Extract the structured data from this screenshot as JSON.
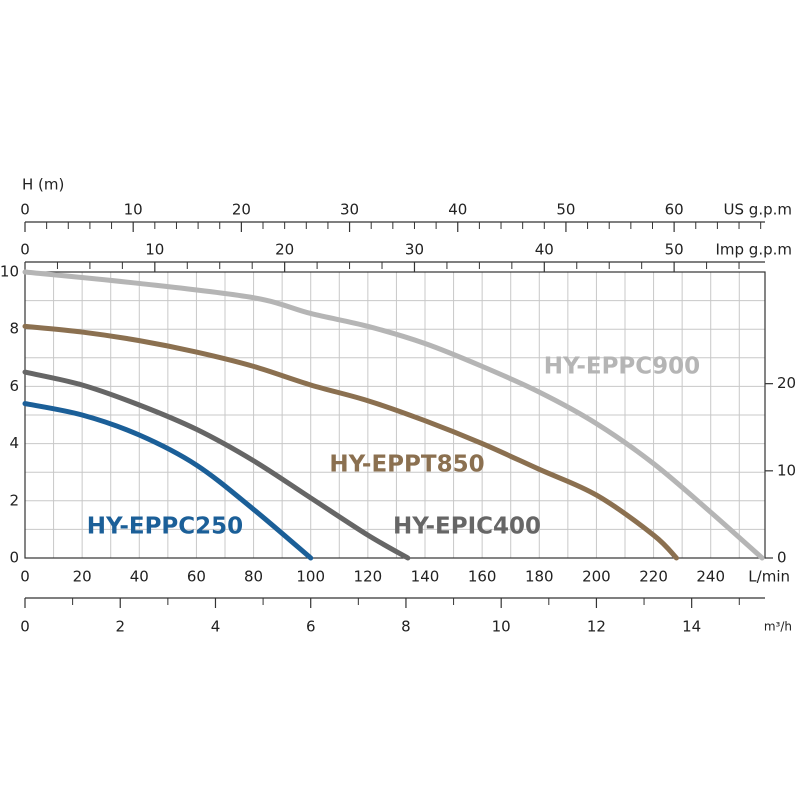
{
  "chart_data": {
    "type": "line",
    "y_label": "H (m)",
    "x_label": "L/min",
    "xlim": [
      0,
      259
    ],
    "xticks": [
      0,
      20,
      40,
      60,
      80,
      100,
      120,
      140,
      160,
      180,
      200,
      220,
      240
    ],
    "minor_xticks": [
      10,
      30,
      50,
      70,
      90,
      110,
      130,
      150,
      170,
      190,
      210,
      230,
      250
    ],
    "ylim": [
      0,
      10
    ],
    "yticks": [
      0,
      2,
      4,
      6,
      8,
      10
    ],
    "minor_yticks": [
      1,
      3,
      5,
      7,
      9
    ],
    "y2lim": [
      0,
      32.81
    ],
    "y2ticks": [
      0,
      10,
      20
    ],
    "grid": true,
    "extra_x_axes": [
      {
        "label": "US g.p.m",
        "position": "top",
        "xlim": [
          0,
          68.4
        ],
        "xticks": [
          0,
          10,
          20,
          30,
          40,
          50,
          60
        ],
        "minor_xticks": [
          2,
          4,
          6,
          8,
          12,
          14,
          16,
          18,
          22,
          24,
          26,
          28,
          32,
          34,
          36,
          38,
          42,
          44,
          46,
          48,
          52,
          54,
          56,
          58,
          62,
          64,
          66,
          68
        ]
      },
      {
        "label": "Imp g.p.m",
        "position": "top",
        "xlim": [
          0,
          57.0
        ],
        "xticks": [
          0,
          10,
          20,
          30,
          40,
          50
        ],
        "minor_xticks": [
          2.5,
          5,
          7.5,
          12.5,
          15,
          17.5,
          22.5,
          25,
          27.5,
          32.5,
          35,
          37.5,
          42.5,
          45,
          47.5,
          52.5,
          55
        ]
      },
      {
        "label": "m³/h",
        "position": "bottom",
        "xlim": [
          0,
          15.54
        ],
        "xticks": [
          0,
          2,
          4,
          6,
          8,
          10,
          12,
          14
        ],
        "minor_xticks": [
          1,
          3,
          5,
          7,
          9,
          11,
          13,
          15
        ]
      }
    ],
    "series": [
      {
        "name": "HY-EPPC250",
        "color": "#1b5f98",
        "x": [
          0,
          20,
          40,
          60,
          80,
          100
        ],
        "values": [
          5.4,
          5.0,
          4.3,
          3.25,
          1.7,
          0
        ]
      },
      {
        "name": "HY-EPIC400",
        "color": "#666666",
        "x": [
          0,
          20,
          40,
          60,
          80,
          100,
          120,
          134
        ],
        "values": [
          6.5,
          6.05,
          5.35,
          4.5,
          3.4,
          2.1,
          0.8,
          0
        ]
      },
      {
        "name": "HY-EPPT850",
        "color": "#8b7050",
        "x": [
          0,
          20,
          40,
          60,
          80,
          100,
          120,
          140,
          160,
          180,
          200,
          220,
          228
        ],
        "values": [
          8.1,
          7.9,
          7.6,
          7.2,
          6.7,
          6.05,
          5.5,
          4.8,
          4.0,
          3.1,
          2.2,
          0.8,
          0
        ]
      },
      {
        "name": "HY-EPPC900",
        "color": "#b5b5b5",
        "x": [
          0,
          40,
          80,
          100,
          120,
          140,
          160,
          180,
          200,
          220,
          240,
          258
        ],
        "values": [
          10,
          9.6,
          9.1,
          8.55,
          8.1,
          7.5,
          6.7,
          5.8,
          4.7,
          3.3,
          1.6,
          0
        ]
      }
    ]
  }
}
